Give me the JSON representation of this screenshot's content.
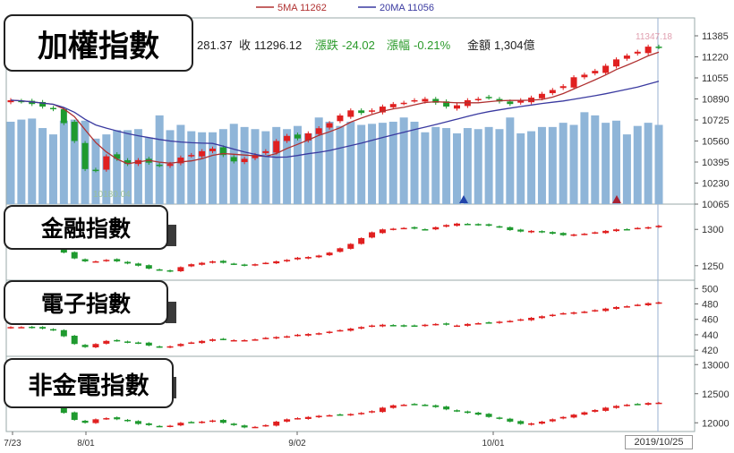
{
  "legend": {
    "ma5": "5MA 11262",
    "ma20": "20MA 11056",
    "ma5_color": "#b03030",
    "ma20_color": "#3a3aa0"
  },
  "quote": {
    "open_partial": "281.37",
    "close_label": "收",
    "close_value": "11296.12",
    "change_label": "漲跌",
    "change_value": "-24.02",
    "pct_label": "漲幅",
    "pct_value": "-0.21%",
    "amount_label": "金額",
    "amount_value": "1,304億",
    "down_color": "#2a9a2a"
  },
  "panels": {
    "main_title": "加權指數",
    "finance_title": "金融指數",
    "electronics_title": "電子指數",
    "non_fin_elec_title": "非金電指數"
  },
  "annotations": {
    "high_label": "11347.18",
    "low_label": "10180.04"
  },
  "current_date": "2019/10/25",
  "chart_data": [
    {
      "type": "candlestick",
      "title": "加權指數",
      "x_tick_labels": [
        "7/23",
        "8/01",
        "9/02",
        "10/01"
      ],
      "y_ticks": [
        11385,
        11220,
        11055,
        10890,
        10725,
        10560,
        10395,
        10230,
        10065
      ],
      "ylim": [
        10065,
        11385
      ],
      "series_names": [
        "5MA 11262",
        "20MA 11056"
      ],
      "closes": [
        10880,
        10870,
        10850,
        10830,
        10810,
        10700,
        10560,
        10340,
        10330,
        10440,
        10420,
        10380,
        10410,
        10390,
        10370,
        10380,
        10430,
        10450,
        10480,
        10500,
        10450,
        10400,
        10420,
        10450,
        10480,
        10560,
        10600,
        10580,
        10620,
        10660,
        10700,
        10760,
        10800,
        10780,
        10800,
        10830,
        10850,
        10860,
        10880,
        10890,
        10860,
        10830,
        10840,
        10880,
        10890,
        10900,
        10870,
        10850,
        10880,
        10900,
        10930,
        10960,
        10990,
        11060,
        11080,
        11110,
        11150,
        11200,
        11230,
        11260,
        11300,
        11296
      ],
      "volume_relative": [
        0.78,
        0.8,
        0.81,
        0.72,
        0.66,
        0.79,
        0.8,
        0.79,
        0.62,
        0.66,
        0.7,
        0.7,
        0.71,
        0.63,
        0.84,
        0.7,
        0.75,
        0.69,
        0.68,
        0.68,
        0.71,
        0.76,
        0.73,
        0.71,
        0.69,
        0.73,
        0.71,
        0.74,
        0.67,
        0.82,
        0.78,
        0.74,
        0.78,
        0.75,
        0.76,
        0.77,
        0.78,
        0.82,
        0.78,
        0.68,
        0.73,
        0.72,
        0.67,
        0.72,
        0.71,
        0.73,
        0.71,
        0.82,
        0.67,
        0.69,
        0.73,
        0.73,
        0.77,
        0.75,
        0.87,
        0.84,
        0.77,
        0.79,
        0.66,
        0.74,
        0.77,
        0.75
      ]
    },
    {
      "type": "candlestick",
      "title": "金融指數",
      "y_ticks": [
        1300,
        1250
      ],
      "ylim": [
        1230,
        1320
      ],
      "closes": [
        1300,
        1302,
        1301,
        1298,
        1288,
        1268,
        1260,
        1256,
        1256,
        1258,
        1256,
        1253,
        1250,
        1246,
        1244,
        1242,
        1248,
        1252,
        1254,
        1256,
        1254,
        1252,
        1250,
        1252,
        1254,
        1256,
        1258,
        1261,
        1262,
        1264,
        1268,
        1274,
        1280,
        1288,
        1296,
        1300,
        1301,
        1302,
        1301,
        1300,
        1303,
        1306,
        1308,
        1307,
        1306,
        1305,
        1303,
        1299,
        1297,
        1298,
        1296,
        1294,
        1292,
        1293,
        1294,
        1296,
        1298,
        1300,
        1300,
        1302,
        1303,
        1305
      ]
    },
    {
      "type": "candlestick",
      "title": "電子指數",
      "y_ticks": [
        500,
        480,
        460,
        440,
        420
      ],
      "ylim": [
        412,
        505
      ],
      "closes": [
        450,
        450,
        449,
        448,
        446,
        438,
        428,
        424,
        428,
        432,
        432,
        430,
        429,
        426,
        424,
        425,
        428,
        430,
        432,
        434,
        434,
        433,
        433,
        434,
        436,
        437,
        438,
        440,
        441,
        442,
        444,
        446,
        448,
        450,
        452,
        453,
        452,
        451,
        452,
        453,
        454,
        453,
        452,
        454,
        455,
        456,
        457,
        458,
        460,
        462,
        464,
        466,
        468,
        469,
        470,
        472,
        474,
        476,
        477,
        479,
        481,
        482
      ]
    },
    {
      "type": "candlestick",
      "title": "非金電指數",
      "y_ticks": [
        13000,
        12500,
        12000
      ],
      "ylim": [
        11850,
        13050
      ],
      "closes": [
        12400,
        12400,
        12390,
        12370,
        12330,
        12170,
        12050,
        12000,
        12060,
        12080,
        12060,
        12030,
        11980,
        11960,
        11940,
        11950,
        12000,
        12010,
        12020,
        12040,
        12000,
        11960,
        11920,
        11930,
        11960,
        12020,
        12060,
        12080,
        12100,
        12120,
        12130,
        12140,
        12150,
        12170,
        12200,
        12260,
        12300,
        12310,
        12320,
        12300,
        12270,
        12230,
        12200,
        12170,
        12140,
        12100,
        12070,
        12020,
        11980,
        11990,
        12020,
        12060,
        12100,
        12140,
        12180,
        12220,
        12260,
        12290,
        12310,
        12320,
        12340,
        12345
      ]
    }
  ]
}
